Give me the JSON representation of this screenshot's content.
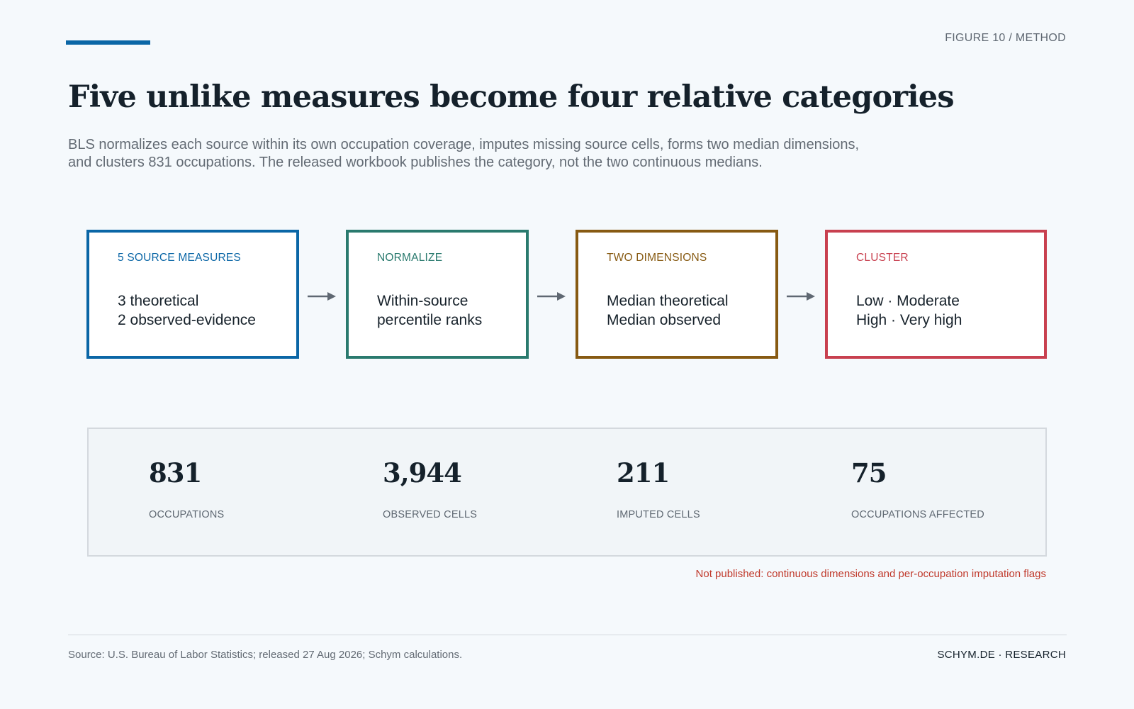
{
  "header": {
    "figure_label": "FIGURE 10 / METHOD",
    "title": "Five unlike measures become four relative categories",
    "subtitle": "BLS normalizes each source within its own occupation coverage, imputes missing source cells, forms two median dimensions, and clusters 831 occupations. The released workbook publishes the category, not the two continuous medians."
  },
  "flow": {
    "steps": [
      {
        "label": "5 SOURCE MEASURES",
        "lines": [
          "3 theoretical",
          "2 observed-evidence"
        ],
        "color": "#0a66a6"
      },
      {
        "label": "NORMALIZE",
        "lines": [
          "Within-source",
          "percentile ranks"
        ],
        "color": "#2a7a6e"
      },
      {
        "label": "TWO DIMENSIONS",
        "lines": [
          "Median theoretical",
          "Median observed"
        ],
        "color": "#875a12"
      },
      {
        "label": "CLUSTER",
        "lines": [
          "Low · Moderate",
          "High · Very high"
        ],
        "color": "#c8404f"
      }
    ],
    "arrow_color": "#5f6872"
  },
  "stats": [
    {
      "value": "831",
      "label": "OCCUPATIONS"
    },
    {
      "value": "3,944",
      "label": "OBSERVED CELLS"
    },
    {
      "value": "211",
      "label": "IMPUTED CELLS"
    },
    {
      "value": "75",
      "label": "OCCUPATIONS AFFECTED"
    }
  ],
  "note": "Not published: continuous dimensions and per-occupation imputation flags",
  "footer": {
    "source": "Source: U.S. Bureau of Labor Statistics; released 27 Aug 2026; Schym calculations.",
    "brand": "SCHYM.DE · RESEARCH"
  }
}
